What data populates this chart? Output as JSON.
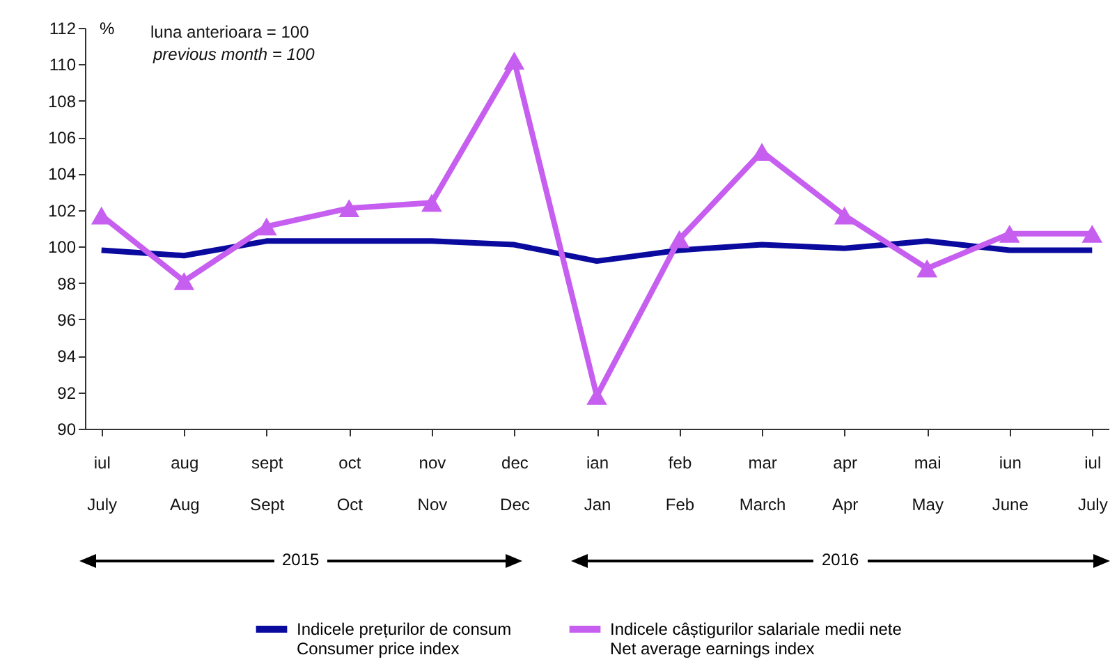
{
  "chart_data": {
    "type": "line",
    "ylabel": "%",
    "categories": [
      "iul\nJuly",
      "aug\nAug",
      "sept\nSept",
      "oct\nOct",
      "nov\nNov",
      "dec\nDec",
      "ian\nJan",
      "feb\nFeb",
      "mar\nMarch",
      "apr\nApr",
      "mai\nMay",
      "iun\nJune",
      "iul\nJuly"
    ],
    "series": [
      {
        "name": "Indicele prețurilor de consum\nConsumer price index",
        "color": "#0a0a9e",
        "marker": "none",
        "values": [
          99.8,
          99.5,
          100.3,
          100.3,
          100.3,
          100.1,
          99.2,
          99.8,
          100.1,
          99.9,
          100.3,
          99.8,
          99.8
        ]
      },
      {
        "name": "Indicele câștigurilor salariale medii nete\nNet average earnings index",
        "color": "#c65ef0",
        "marker": "triangle",
        "values": [
          101.7,
          98.1,
          101.1,
          102.1,
          102.4,
          110.2,
          91.8,
          100.4,
          105.2,
          101.7,
          98.8,
          100.7,
          100.7
        ]
      }
    ],
    "ylim": [
      90,
      112
    ],
    "yticks": [
      90,
      92,
      94,
      96,
      98,
      100,
      102,
      104,
      106,
      108,
      110,
      112
    ],
    "grid": false,
    "legend": "bottom",
    "line_style": "solid",
    "annotations": [
      "luna anterioara = 100",
      "previous month = 100",
      "2015",
      "2016"
    ]
  }
}
